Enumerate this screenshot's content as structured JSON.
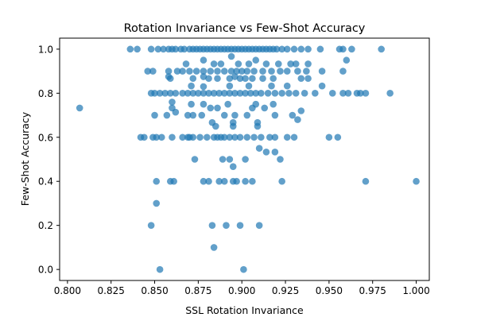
{
  "chart_data": {
    "type": "scatter",
    "title": "Rotation Invariance vs Few-Shot Accuracy",
    "xlabel": "SSL Rotation Invariance",
    "ylabel": "Few-Shot Accuracy",
    "xlim": [
      0.7955,
      1.0075
    ],
    "ylim": [
      -0.05,
      1.05
    ],
    "xticks": [
      0.8,
      0.825,
      0.85,
      0.875,
      0.9,
      0.925,
      0.95,
      0.975,
      1.0
    ],
    "xtick_labels": [
      "0.800",
      "0.825",
      "0.850",
      "0.875",
      "0.900",
      "0.925",
      "0.950",
      "0.975",
      "1.000"
    ],
    "yticks": [
      0.0,
      0.2,
      0.4,
      0.6,
      0.8,
      1.0
    ],
    "ytick_labels": [
      "0.0",
      "0.2",
      "0.4",
      "0.6",
      "0.8",
      "1.0"
    ],
    "grid": false,
    "legend": "none",
    "marker_color": "#1f77b4",
    "marker_opacity": 0.7,
    "points": [
      [
        0.836,
        1.0
      ],
      [
        0.84,
        1.0
      ],
      [
        0.848,
        1.0
      ],
      [
        0.852,
        1.0
      ],
      [
        0.855,
        1.0
      ],
      [
        0.858,
        1.0
      ],
      [
        0.86,
        1.0
      ],
      [
        0.862,
        1.0
      ],
      [
        0.865,
        1.0
      ],
      [
        0.867,
        1.0
      ],
      [
        0.87,
        1.0
      ],
      [
        0.872,
        1.0
      ],
      [
        0.874,
        1.0
      ],
      [
        0.876,
        1.0
      ],
      [
        0.878,
        1.0
      ],
      [
        0.88,
        1.0
      ],
      [
        0.882,
        1.0
      ],
      [
        0.884,
        1.0
      ],
      [
        0.886,
        1.0
      ],
      [
        0.888,
        1.0
      ],
      [
        0.89,
        1.0
      ],
      [
        0.892,
        1.0
      ],
      [
        0.894,
        1.0
      ],
      [
        0.896,
        1.0
      ],
      [
        0.898,
        1.0
      ],
      [
        0.9,
        1.0
      ],
      [
        0.902,
        1.0
      ],
      [
        0.904,
        1.0
      ],
      [
        0.906,
        1.0
      ],
      [
        0.908,
        1.0
      ],
      [
        0.91,
        1.0
      ],
      [
        0.912,
        1.0
      ],
      [
        0.914,
        1.0
      ],
      [
        0.916,
        1.0
      ],
      [
        0.918,
        1.0
      ],
      [
        0.92,
        1.0
      ],
      [
        0.923,
        1.0
      ],
      [
        0.926,
        1.0
      ],
      [
        0.93,
        1.0
      ],
      [
        0.934,
        1.0
      ],
      [
        0.938,
        1.0
      ],
      [
        0.945,
        1.0
      ],
      [
        0.956,
        1.0
      ],
      [
        0.958,
        1.0
      ],
      [
        0.963,
        1.0
      ],
      [
        0.98,
        1.0
      ],
      [
        0.894,
        0.967
      ],
      [
        0.96,
        0.95
      ],
      [
        0.878,
        0.95
      ],
      [
        0.908,
        0.95
      ],
      [
        0.884,
        0.933
      ],
      [
        0.898,
        0.933
      ],
      [
        0.868,
        0.933
      ],
      [
        0.888,
        0.933
      ],
      [
        0.904,
        0.933
      ],
      [
        0.914,
        0.933
      ],
      [
        0.921,
        0.933
      ],
      [
        0.928,
        0.933
      ],
      [
        0.931,
        0.933
      ],
      [
        0.938,
        0.933
      ],
      [
        0.846,
        0.9
      ],
      [
        0.849,
        0.9
      ],
      [
        0.858,
        0.9
      ],
      [
        0.863,
        0.9
      ],
      [
        0.866,
        0.9
      ],
      [
        0.87,
        0.9
      ],
      [
        0.874,
        0.9
      ],
      [
        0.878,
        0.9
      ],
      [
        0.882,
        0.9
      ],
      [
        0.886,
        0.9
      ],
      [
        0.89,
        0.9
      ],
      [
        0.894,
        0.9
      ],
      [
        0.897,
        0.9
      ],
      [
        0.9,
        0.9
      ],
      [
        0.903,
        0.9
      ],
      [
        0.907,
        0.9
      ],
      [
        0.912,
        0.9
      ],
      [
        0.917,
        0.9
      ],
      [
        0.922,
        0.9
      ],
      [
        0.926,
        0.9
      ],
      [
        0.932,
        0.9
      ],
      [
        0.937,
        0.9
      ],
      [
        0.946,
        0.9
      ],
      [
        0.958,
        0.9
      ],
      [
        0.858,
        0.875
      ],
      [
        0.878,
        0.875
      ],
      [
        0.896,
        0.875
      ],
      [
        0.859,
        0.867
      ],
      [
        0.872,
        0.867
      ],
      [
        0.881,
        0.867
      ],
      [
        0.886,
        0.867
      ],
      [
        0.893,
        0.867
      ],
      [
        0.899,
        0.867
      ],
      [
        0.902,
        0.867
      ],
      [
        0.906,
        0.867
      ],
      [
        0.912,
        0.867
      ],
      [
        0.918,
        0.867
      ],
      [
        0.934,
        0.867
      ],
      [
        0.938,
        0.867
      ],
      [
        0.848,
        0.8
      ],
      [
        0.85,
        0.8
      ],
      [
        0.853,
        0.8
      ],
      [
        0.856,
        0.8
      ],
      [
        0.859,
        0.8
      ],
      [
        0.862,
        0.8
      ],
      [
        0.866,
        0.8
      ],
      [
        0.869,
        0.8
      ],
      [
        0.872,
        0.8
      ],
      [
        0.875,
        0.8
      ],
      [
        0.878,
        0.8
      ],
      [
        0.881,
        0.8
      ],
      [
        0.884,
        0.8
      ],
      [
        0.887,
        0.8
      ],
      [
        0.89,
        0.8
      ],
      [
        0.893,
        0.8
      ],
      [
        0.896,
        0.8
      ],
      [
        0.899,
        0.8
      ],
      [
        0.902,
        0.8
      ],
      [
        0.905,
        0.8
      ],
      [
        0.908,
        0.8
      ],
      [
        0.911,
        0.8
      ],
      [
        0.915,
        0.8
      ],
      [
        0.919,
        0.8
      ],
      [
        0.923,
        0.8
      ],
      [
        0.927,
        0.8
      ],
      [
        0.931,
        0.8
      ],
      [
        0.936,
        0.8
      ],
      [
        0.942,
        0.8
      ],
      [
        0.952,
        0.8
      ],
      [
        0.958,
        0.8
      ],
      [
        0.961,
        0.8
      ],
      [
        0.966,
        0.8
      ],
      [
        0.968,
        0.8
      ],
      [
        0.971,
        0.8
      ],
      [
        0.985,
        0.8
      ],
      [
        0.878,
        0.83
      ],
      [
        0.871,
        0.833
      ],
      [
        0.893,
        0.833
      ],
      [
        0.904,
        0.833
      ],
      [
        0.917,
        0.833
      ],
      [
        0.926,
        0.833
      ],
      [
        0.946,
        0.833
      ],
      [
        0.86,
        0.76
      ],
      [
        0.871,
        0.75
      ],
      [
        0.878,
        0.75
      ],
      [
        0.892,
        0.75
      ],
      [
        0.908,
        0.75
      ],
      [
        0.918,
        0.75
      ],
      [
        0.86,
        0.733
      ],
      [
        0.882,
        0.733
      ],
      [
        0.886,
        0.733
      ],
      [
        0.906,
        0.733
      ],
      [
        0.913,
        0.733
      ],
      [
        0.934,
        0.72
      ],
      [
        0.807,
        0.733
      ],
      [
        0.85,
        0.7
      ],
      [
        0.857,
        0.7
      ],
      [
        0.869,
        0.7
      ],
      [
        0.872,
        0.7
      ],
      [
        0.877,
        0.7
      ],
      [
        0.89,
        0.7
      ],
      [
        0.896,
        0.7
      ],
      [
        0.903,
        0.7
      ],
      [
        0.919,
        0.7
      ],
      [
        0.929,
        0.7
      ],
      [
        0.862,
        0.714
      ],
      [
        0.932,
        0.68
      ],
      [
        0.883,
        0.667
      ],
      [
        0.895,
        0.667
      ],
      [
        0.909,
        0.667
      ],
      [
        0.885,
        0.65
      ],
      [
        0.895,
        0.65
      ],
      [
        0.909,
        0.65
      ],
      [
        0.842,
        0.6
      ],
      [
        0.844,
        0.6
      ],
      [
        0.849,
        0.6
      ],
      [
        0.851,
        0.6
      ],
      [
        0.854,
        0.6
      ],
      [
        0.86,
        0.6
      ],
      [
        0.866,
        0.6
      ],
      [
        0.869,
        0.6
      ],
      [
        0.872,
        0.6
      ],
      [
        0.876,
        0.6
      ],
      [
        0.88,
        0.6
      ],
      [
        0.884,
        0.6
      ],
      [
        0.886,
        0.6
      ],
      [
        0.888,
        0.6
      ],
      [
        0.89,
        0.6
      ],
      [
        0.893,
        0.6
      ],
      [
        0.896,
        0.6
      ],
      [
        0.899,
        0.6
      ],
      [
        0.903,
        0.6
      ],
      [
        0.907,
        0.6
      ],
      [
        0.911,
        0.6
      ],
      [
        0.916,
        0.6
      ],
      [
        0.919,
        0.6
      ],
      [
        0.926,
        0.6
      ],
      [
        0.93,
        0.6
      ],
      [
        0.95,
        0.6
      ],
      [
        0.955,
        0.6
      ],
      [
        0.87,
        0.6
      ],
      [
        0.91,
        0.55
      ],
      [
        0.914,
        0.533
      ],
      [
        0.919,
        0.533
      ],
      [
        0.922,
        0.5
      ],
      [
        0.873,
        0.5
      ],
      [
        0.889,
        0.5
      ],
      [
        0.893,
        0.5
      ],
      [
        0.902,
        0.5
      ],
      [
        0.895,
        0.467
      ],
      [
        0.851,
        0.4
      ],
      [
        0.859,
        0.4
      ],
      [
        0.861,
        0.4
      ],
      [
        0.878,
        0.4
      ],
      [
        0.881,
        0.4
      ],
      [
        0.887,
        0.4
      ],
      [
        0.89,
        0.4
      ],
      [
        0.895,
        0.4
      ],
      [
        0.897,
        0.4
      ],
      [
        0.902,
        0.4
      ],
      [
        0.906,
        0.4
      ],
      [
        0.923,
        0.4
      ],
      [
        0.971,
        0.4
      ],
      [
        1.0,
        0.4
      ],
      [
        0.851,
        0.3
      ],
      [
        0.848,
        0.2
      ],
      [
        0.883,
        0.2
      ],
      [
        0.891,
        0.2
      ],
      [
        0.899,
        0.2
      ],
      [
        0.91,
        0.2
      ],
      [
        0.884,
        0.1
      ],
      [
        0.853,
        0.0
      ],
      [
        0.901,
        0.0
      ]
    ]
  }
}
